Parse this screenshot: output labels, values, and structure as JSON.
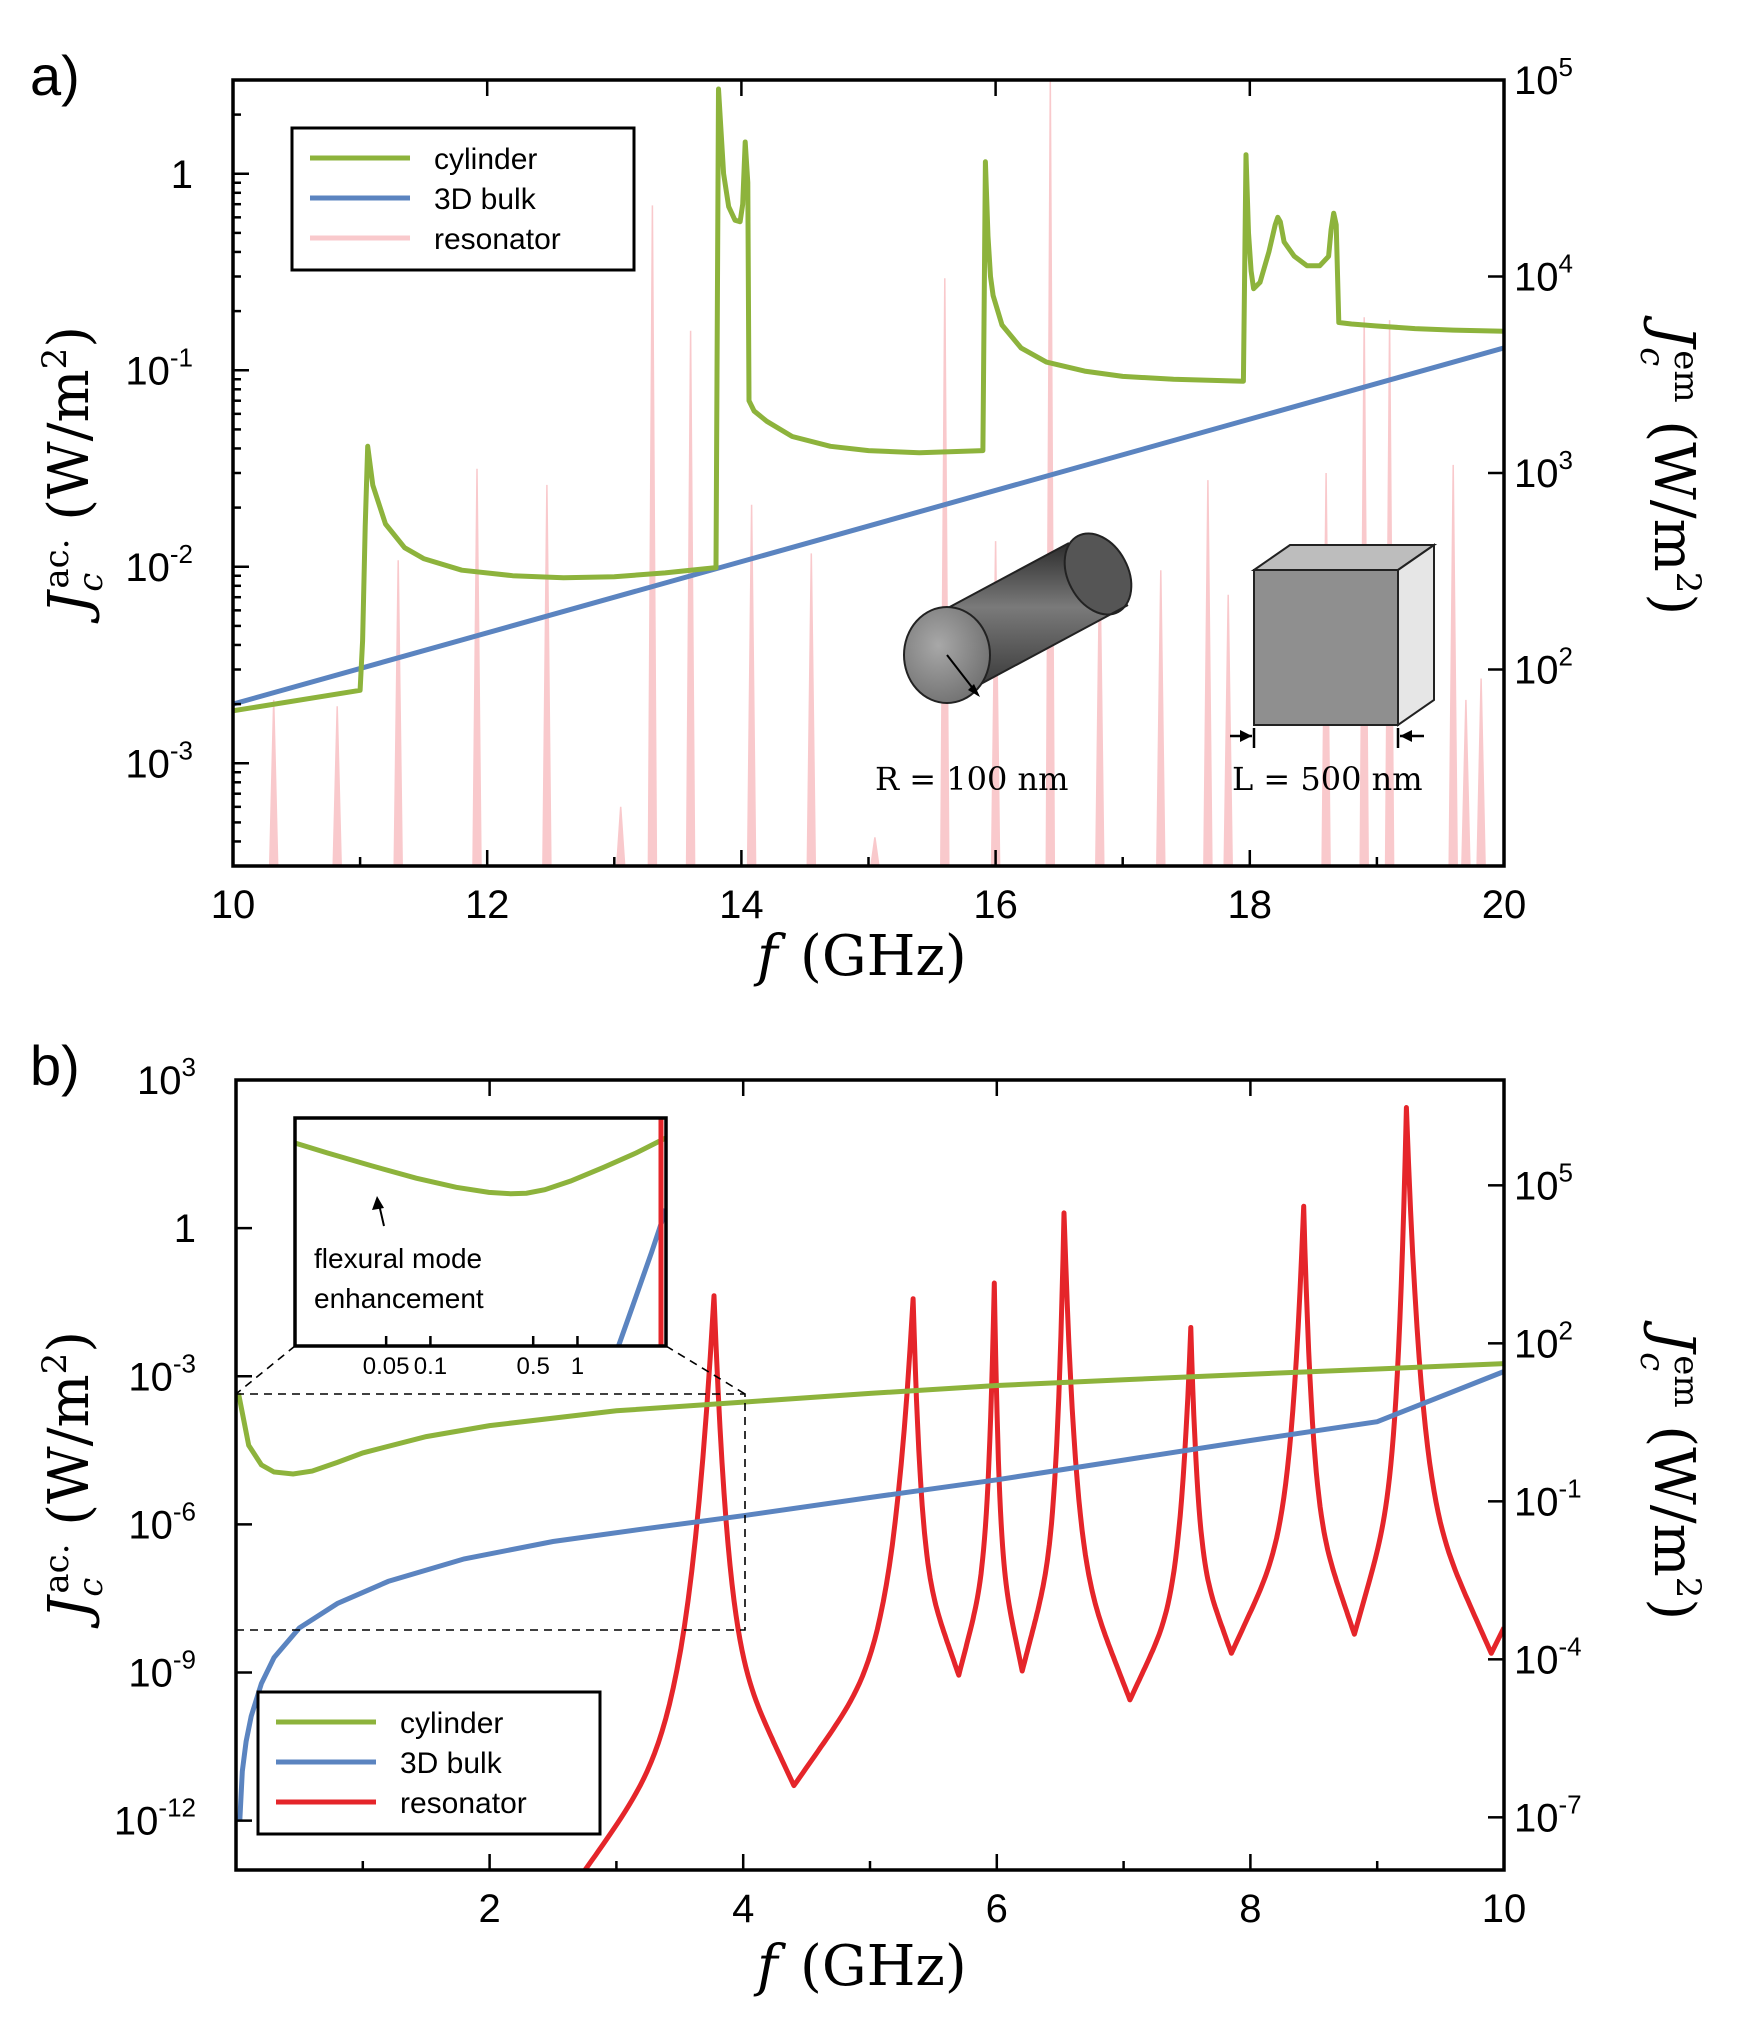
{
  "colors": {
    "cylinder": "#8db33c",
    "bulk": "#5b84c0",
    "resonator_a": "#f9c9cc",
    "resonator_b": "#e5252a"
  },
  "chart_data": [
    {
      "panel": "a)",
      "type": "line",
      "xlabel": "f",
      "xunit": "(GHz)",
      "ylabel_left": "J_c^{ac.} (W/m^2)",
      "ylabel_right": "J_c^{em} (W/m^2)",
      "xlim": [
        10,
        20
      ],
      "ylim_left": [
        0.0003,
        3
      ],
      "ylim_right": [
        10,
        100000
      ],
      "yscale": "log",
      "x_ticks": [
        "10",
        "12",
        "14",
        "16",
        "18",
        "20"
      ],
      "y_ticks_left": [
        {
          "base": "10",
          "exp": "-3"
        },
        {
          "base": "10",
          "exp": "-2"
        },
        {
          "base": "10",
          "exp": "-1"
        },
        {
          "base": "1",
          "exp": ""
        }
      ],
      "y_ticks_right": [
        {
          "base": "10",
          "exp": "2"
        },
        {
          "base": "10",
          "exp": "3"
        },
        {
          "base": "10",
          "exp": "4"
        },
        {
          "base": "10",
          "exp": "5"
        }
      ],
      "legend": [
        "cylinder",
        "3D bulk",
        "resonator"
      ],
      "legend_position": "top-left",
      "series": [
        {
          "name": "cylinder",
          "axis": "left",
          "x": [
            10,
            11.0,
            11.02,
            11.04,
            11.06,
            11.1,
            11.2,
            11.35,
            11.5,
            11.8,
            12.2,
            12.6,
            13.0,
            13.4,
            13.8,
            13.8,
            13.82,
            13.86,
            13.9,
            13.95,
            13.99,
            14.01,
            14.03,
            14.05,
            14.06,
            14.1,
            14.2,
            14.4,
            14.7,
            15.0,
            15.4,
            15.9,
            15.92,
            15.94,
            15.96,
            15.98,
            16.05,
            16.2,
            16.4,
            16.7,
            17.0,
            17.4,
            17.95,
            17.97,
            17.99,
            18.01,
            18.03,
            18.08,
            18.15,
            18.2,
            18.22,
            18.24,
            18.27,
            18.35,
            18.45,
            18.55,
            18.62,
            18.64,
            18.66,
            18.68,
            18.7,
            18.7,
            18.8,
            19.0,
            19.3,
            19.6,
            20.0
          ],
          "y": [
            0.00185,
            0.00235,
            0.0042,
            0.016,
            0.041,
            0.026,
            0.0165,
            0.0125,
            0.011,
            0.0096,
            0.009,
            0.0088,
            0.0089,
            0.0093,
            0.0099,
            0.0099,
            2.7,
            1.0,
            0.68,
            0.58,
            0.57,
            0.7,
            1.45,
            0.9,
            0.07,
            0.062,
            0.055,
            0.046,
            0.041,
            0.039,
            0.038,
            0.039,
            1.15,
            0.48,
            0.3,
            0.24,
            0.17,
            0.13,
            0.11,
            0.099,
            0.093,
            0.09,
            0.088,
            1.25,
            0.5,
            0.32,
            0.26,
            0.28,
            0.4,
            0.55,
            0.6,
            0.57,
            0.45,
            0.38,
            0.34,
            0.34,
            0.38,
            0.52,
            0.63,
            0.55,
            0.175,
            0.175,
            0.172,
            0.168,
            0.163,
            0.16,
            0.158
          ]
        },
        {
          "name": "3D bulk",
          "axis": "left",
          "x": [
            10,
            20
          ],
          "y": [
            0.002,
            0.13
          ]
        },
        {
          "name": "resonator",
          "axis": "right",
          "style": "spikes",
          "peaks": [
            {
              "x": 10.32,
              "y": 70
            },
            {
              "x": 10.82,
              "y": 65
            },
            {
              "x": 11.3,
              "y": 360
            },
            {
              "x": 11.92,
              "y": 1050
            },
            {
              "x": 12.47,
              "y": 870
            },
            {
              "x": 13.05,
              "y": 20
            },
            {
              "x": 13.3,
              "y": 23000
            },
            {
              "x": 13.6,
              "y": 5300
            },
            {
              "x": 14.08,
              "y": 690
            },
            {
              "x": 14.55,
              "y": 390
            },
            {
              "x": 15.05,
              "y": 14
            },
            {
              "x": 15.6,
              "y": 9800
            },
            {
              "x": 16.0,
              "y": 450
            },
            {
              "x": 16.43,
              "y": 100000
            },
            {
              "x": 16.82,
              "y": 390
            },
            {
              "x": 17.3,
              "y": 320
            },
            {
              "x": 17.67,
              "y": 920
            },
            {
              "x": 17.83,
              "y": 240
            },
            {
              "x": 18.6,
              "y": 1000
            },
            {
              "x": 18.9,
              "y": 6200
            },
            {
              "x": 19.1,
              "y": 6000
            },
            {
              "x": 19.6,
              "y": 1100
            },
            {
              "x": 19.7,
              "y": 70
            },
            {
              "x": 19.82,
              "y": 90
            }
          ]
        }
      ],
      "annotations": {
        "cylinder_label": "R = 100 nm",
        "cube_label": "L = 500 nm"
      }
    },
    {
      "panel": "b)",
      "type": "line",
      "xlabel": "f",
      "xunit": "(GHz)",
      "ylabel_left": "J_c^{ac.} (W/m^2)",
      "ylabel_right": "J_c^{em} (W/m^2)",
      "xlim": [
        0,
        10
      ],
      "ylim_left": [
        1e-13,
        1000
      ],
      "ylim_right": [
        1e-08,
        10000000.0
      ],
      "yscale": "log",
      "x_ticks": [
        "2",
        "4",
        "6",
        "8",
        "10"
      ],
      "y_ticks_left": [
        {
          "base": "10",
          "exp": "-12"
        },
        {
          "base": "10",
          "exp": "-9"
        },
        {
          "base": "10",
          "exp": "-6"
        },
        {
          "base": "10",
          "exp": "-3"
        },
        {
          "base": "1",
          "exp": ""
        },
        {
          "base": "10",
          "exp": "3"
        }
      ],
      "y_ticks_right": [
        {
          "base": "10",
          "exp": "-7"
        },
        {
          "base": "10",
          "exp": "-4"
        },
        {
          "base": "10",
          "exp": "-1"
        },
        {
          "base": "10",
          "exp": "2"
        },
        {
          "base": "10",
          "exp": "5"
        }
      ],
      "legend": [
        "cylinder",
        "3D bulk",
        "resonator"
      ],
      "legend_position": "bottom-left",
      "series": [
        {
          "name": "cylinder",
          "axis": "left",
          "x": [
            0.02,
            0.1,
            0.2,
            0.3,
            0.45,
            0.6,
            0.8,
            1.0,
            1.5,
            2.0,
            3.0,
            4.0,
            5.0,
            6.0,
            7.0,
            8.0,
            9.0,
            10.0
          ],
          "y": [
            0.00045,
            4e-05,
            1.6e-05,
            1.15e-05,
            1.05e-05,
            1.2e-05,
            1.8e-05,
            2.8e-05,
            6e-05,
            0.0001,
            0.0002,
            0.0003,
            0.00045,
            0.00065,
            0.00085,
            0.0011,
            0.0014,
            0.0018
          ]
        },
        {
          "name": "3D bulk",
          "axis": "left",
          "x": [
            0.03,
            0.05,
            0.08,
            0.12,
            0.2,
            0.3,
            0.5,
            0.8,
            1.2,
            1.8,
            2.5,
            3.2,
            4.0,
            5.0,
            6.0,
            7.0,
            8.0,
            9.0,
            10.0
          ],
          "y": [
            1e-12,
            1e-11,
            4e-11,
            1.3e-10,
            6e-10,
            2e-09,
            8e-09,
            2.5e-08,
            7e-08,
            2e-07,
            4.5e-07,
            8e-07,
            1.5e-06,
            3.5e-06,
            8e-06,
            2e-05,
            5e-05,
            0.00012,
            0.00125
          ]
        },
        {
          "name": "resonator",
          "axis": "right",
          "style": "resonances",
          "start": {
            "x": 2.6,
            "y": 3e-09
          },
          "peaks": [
            {
              "x": 3.77,
              "y": 800,
              "min_after": {
                "x": 4.4,
                "y": 4e-07
              }
            },
            {
              "x": 5.34,
              "y": 700,
              "min_after": {
                "x": 5.7,
                "y": 5e-05
              }
            },
            {
              "x": 5.98,
              "y": 1400,
              "min_after": {
                "x": 6.2,
                "y": 6e-05
              }
            },
            {
              "x": 6.53,
              "y": 30000,
              "min_after": {
                "x": 7.05,
                "y": 1.7e-05
              }
            },
            {
              "x": 7.53,
              "y": 200,
              "min_after": {
                "x": 7.85,
                "y": 0.00013
              }
            },
            {
              "x": 8.42,
              "y": 40000,
              "min_after": {
                "x": 8.82,
                "y": 0.0003
              }
            },
            {
              "x": 9.23,
              "y": 3000000,
              "min_after": {
                "x": 9.9,
                "y": 0.00013
              }
            }
          ]
        }
      ],
      "inset": {
        "x_ticks": [
          "0.05",
          "0.1",
          "0.5",
          "1"
        ],
        "annotation": [
          "flexural mode",
          "enhancement"
        ]
      }
    }
  ]
}
